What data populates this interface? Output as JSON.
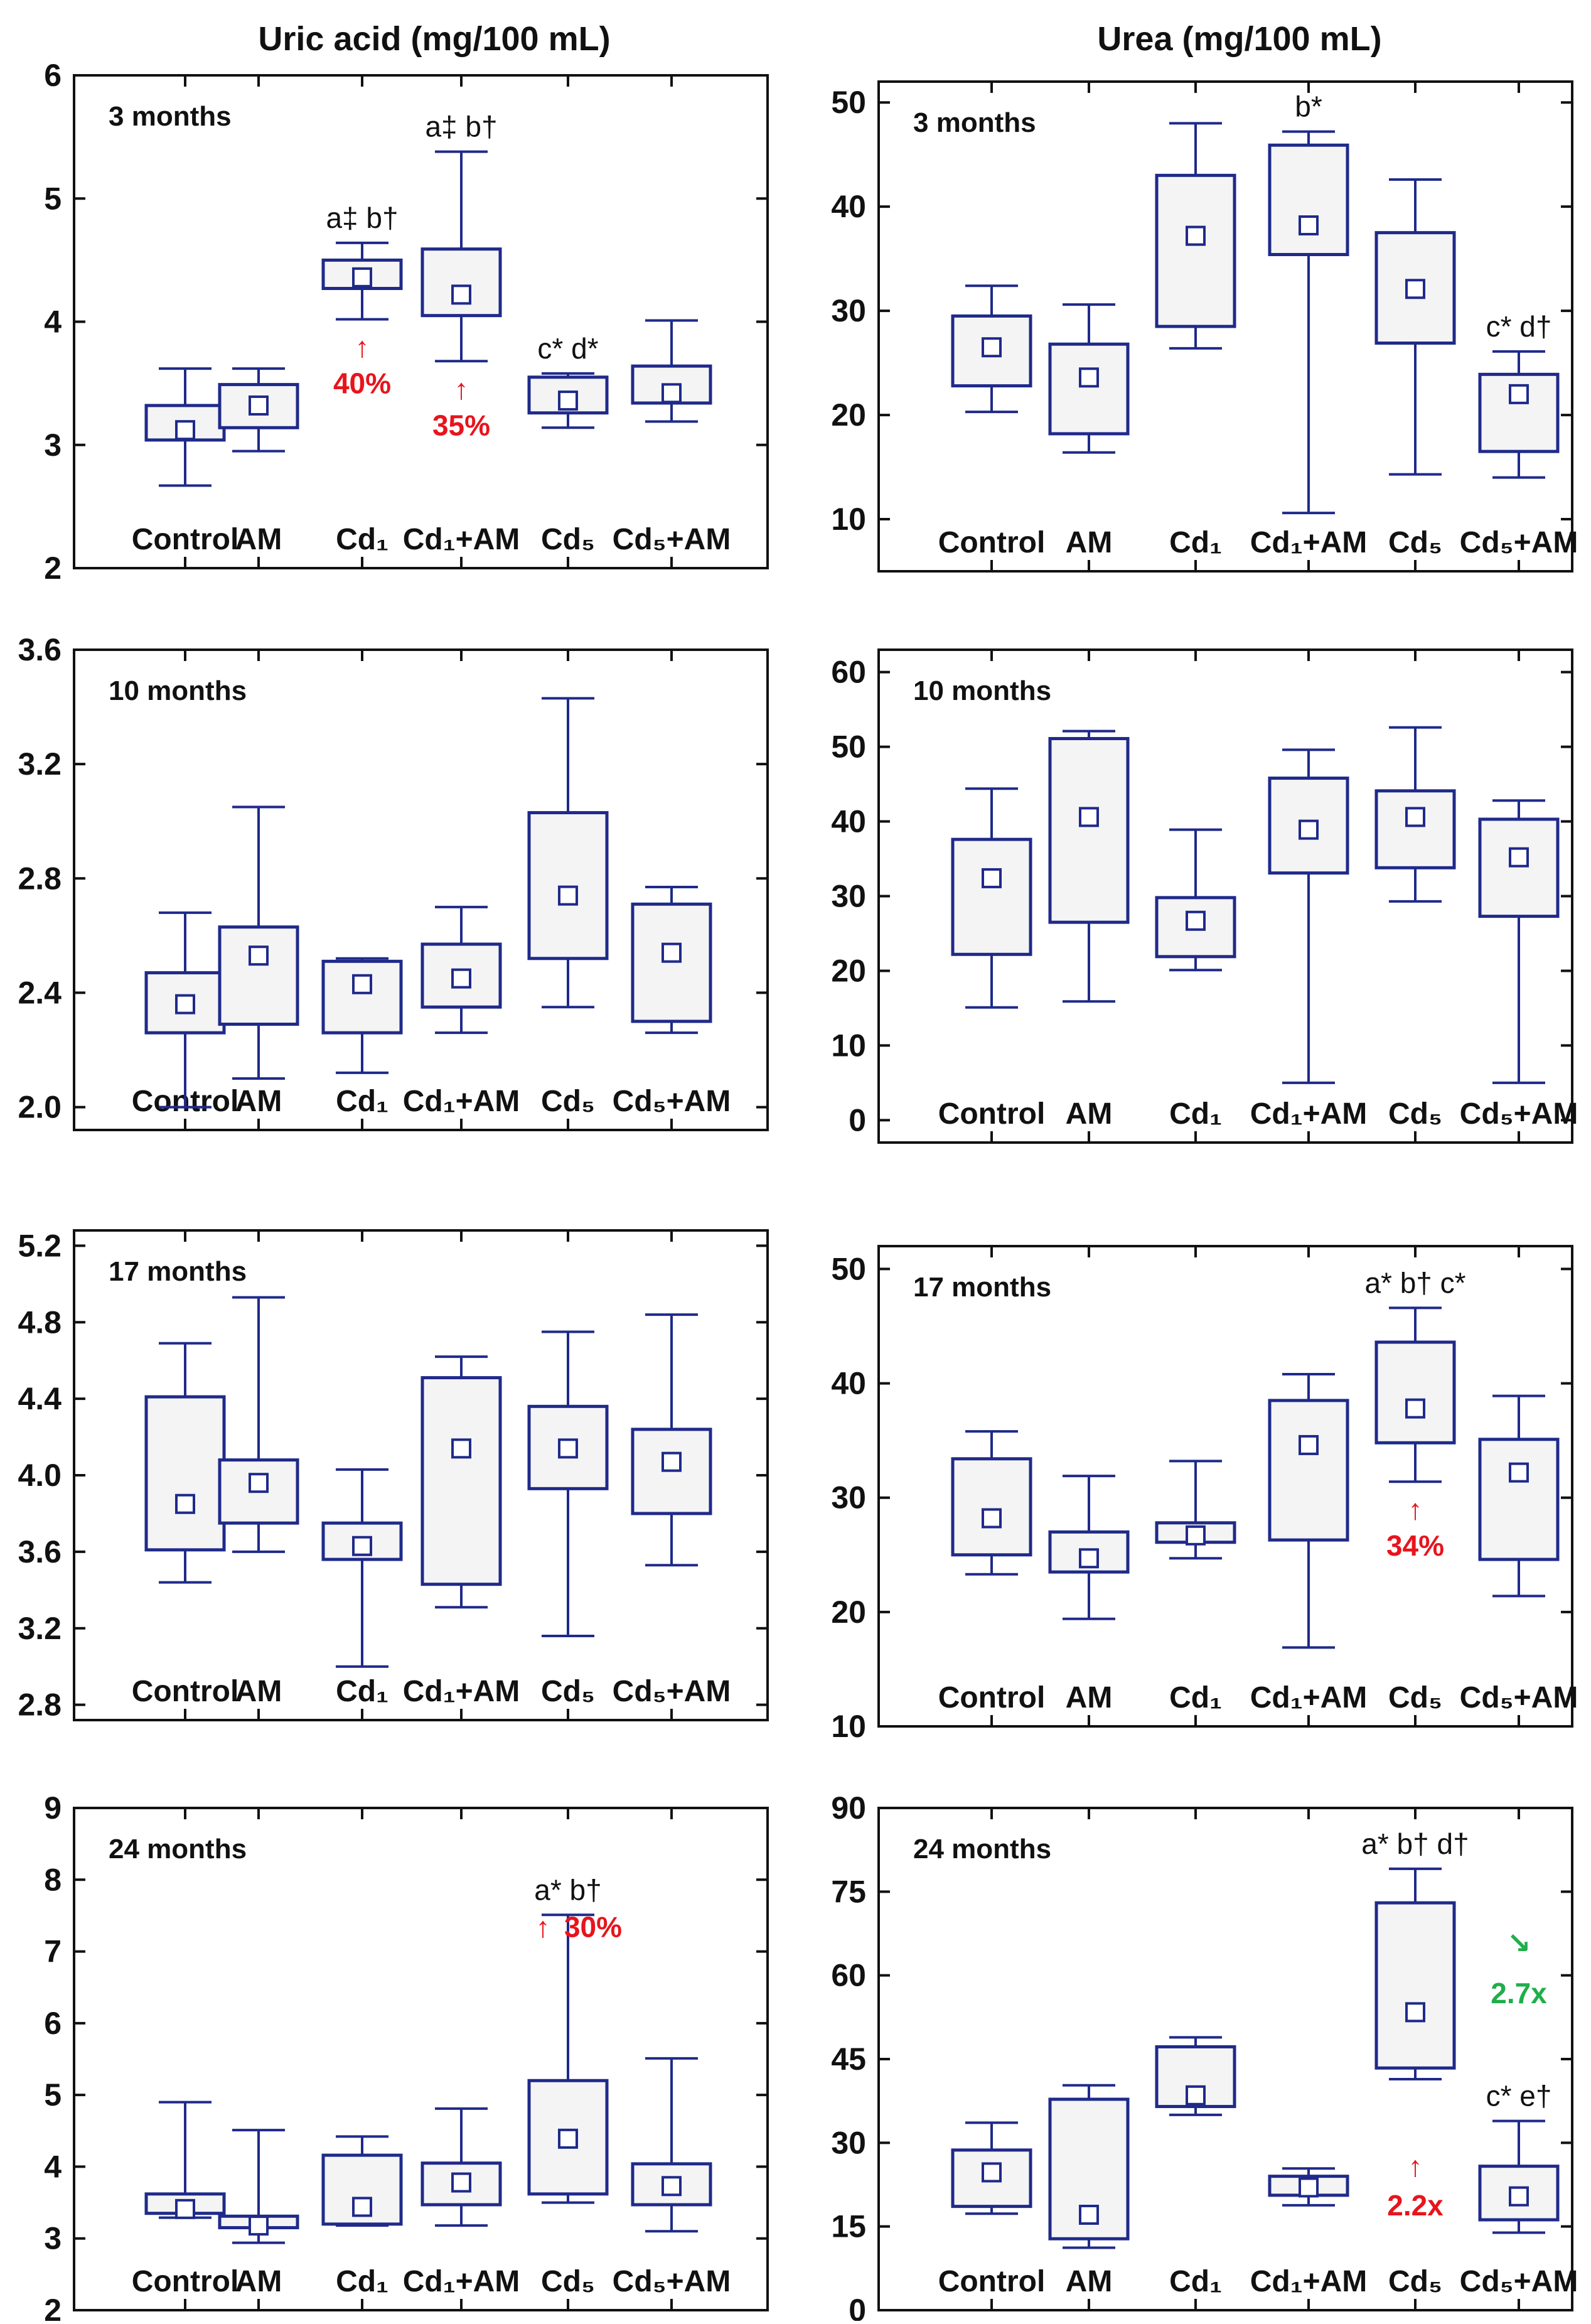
{
  "column_titles": {
    "left": "Uric acid (mg/100 mL)",
    "right": "Urea (mg/100 mL)"
  },
  "colors": {
    "box": "#1f2a8a",
    "box_fill": "#f4f4f4",
    "increase": "#e8141c",
    "decrease": "#1fae4b",
    "text": "#111111"
  },
  "chart_data": [
    {
      "type": "box",
      "panel": "uric-3m",
      "title": "Uric acid (mg/100 mL)",
      "period": "3 months",
      "categories": [
        "Control",
        "AM",
        "Cd₁",
        "Cd₁+AM",
        "Cd₅",
        "Cd₅+AM"
      ],
      "ylim": [
        2,
        6
      ],
      "yticks": [
        2,
        3,
        4,
        5,
        6
      ],
      "boxes": [
        {
          "whisker_low": 2.67,
          "q1": 3.04,
          "mean": 3.12,
          "q3": 3.32,
          "whisker_high": 3.62
        },
        {
          "whisker_low": 2.95,
          "q1": 3.14,
          "mean": 3.32,
          "q3": 3.49,
          "whisker_high": 3.62
        },
        {
          "whisker_low": 4.02,
          "q1": 4.27,
          "mean": 4.36,
          "q3": 4.5,
          "whisker_high": 4.64
        },
        {
          "whisker_low": 3.68,
          "q1": 4.05,
          "mean": 4.22,
          "q3": 4.59,
          "whisker_high": 5.38
        },
        {
          "whisker_low": 3.14,
          "q1": 3.26,
          "mean": 3.36,
          "q3": 3.55,
          "whisker_high": 3.58
        },
        {
          "whisker_low": 3.19,
          "q1": 3.34,
          "mean": 3.42,
          "q3": 3.64,
          "whisker_high": 4.01
        }
      ],
      "annotations": [
        {
          "group": 2,
          "text": "a‡ b†"
        },
        {
          "group": 3,
          "text": "a‡ b†"
        },
        {
          "group": 4,
          "text": "c* d*"
        }
      ],
      "changes": [
        {
          "group": 2,
          "arrow": "↑",
          "text": "40%"
        },
        {
          "group": 3,
          "arrow": "↑",
          "text": "35%"
        }
      ]
    },
    {
      "type": "box",
      "panel": "urea-3m",
      "title": "Urea (mg/100 mL)",
      "period": "3 months",
      "categories": [
        "Control",
        "AM",
        "Cd₁",
        "Cd₁+AM",
        "Cd₅",
        "Cd₅+AM"
      ],
      "ylim": [
        5,
        52
      ],
      "yticks": [
        10,
        20,
        30,
        40,
        50
      ],
      "boxes": [
        {
          "whisker_low": 20.3,
          "q1": 22.8,
          "mean": 26.5,
          "q3": 29.5,
          "whisker_high": 32.4
        },
        {
          "whisker_low": 16.4,
          "q1": 18.2,
          "mean": 23.6,
          "q3": 26.8,
          "whisker_high": 30.6
        },
        {
          "whisker_low": 26.4,
          "q1": 28.5,
          "mean": 37.2,
          "q3": 43.0,
          "whisker_high": 48.0
        },
        {
          "whisker_low": 10.6,
          "q1": 35.4,
          "mean": 38.2,
          "q3": 45.9,
          "whisker_high": 47.2
        },
        {
          "whisker_low": 14.3,
          "q1": 26.9,
          "mean": 32.1,
          "q3": 37.5,
          "whisker_high": 42.6
        },
        {
          "whisker_low": 14.0,
          "q1": 16.5,
          "mean": 22.0,
          "q3": 23.9,
          "whisker_high": 26.1
        }
      ],
      "annotations": [
        {
          "group": 3,
          "text": "b*"
        },
        {
          "group": 5,
          "text": "c* d†"
        }
      ],
      "changes": []
    },
    {
      "type": "box",
      "panel": "uric-10m",
      "title": "Uric acid (mg/100 mL)",
      "period": "10 months",
      "categories": [
        "Control",
        "AM",
        "Cd₁",
        "Cd₁+AM",
        "Cd₅",
        "Cd₅+AM"
      ],
      "ylim": [
        1.92,
        3.6
      ],
      "yticks": [
        2.0,
        2.4,
        2.8,
        3.2,
        3.6
      ],
      "boxes": [
        {
          "whisker_low": 2.0,
          "q1": 2.26,
          "mean": 2.36,
          "q3": 2.47,
          "whisker_high": 2.68
        },
        {
          "whisker_low": 2.1,
          "q1": 2.29,
          "mean": 2.53,
          "q3": 2.63,
          "whisker_high": 3.05
        },
        {
          "whisker_low": 2.12,
          "q1": 2.26,
          "mean": 2.43,
          "q3": 2.51,
          "whisker_high": 2.52
        },
        {
          "whisker_low": 2.26,
          "q1": 2.35,
          "mean": 2.45,
          "q3": 2.57,
          "whisker_high": 2.7
        },
        {
          "whisker_low": 2.35,
          "q1": 2.52,
          "mean": 2.74,
          "q3": 3.03,
          "whisker_high": 3.43
        },
        {
          "whisker_low": 2.26,
          "q1": 2.3,
          "mean": 2.54,
          "q3": 2.71,
          "whisker_high": 2.77
        }
      ],
      "annotations": [],
      "changes": []
    },
    {
      "type": "box",
      "panel": "urea-10m",
      "title": "Urea (mg/100 mL)",
      "period": "10 months",
      "categories": [
        "Control",
        "AM",
        "Cd₁",
        "Cd₁+AM",
        "Cd₅",
        "Cd₅+AM"
      ],
      "ylim": [
        -3,
        63
      ],
      "yticks": [
        0,
        10,
        20,
        30,
        40,
        50,
        60
      ],
      "boxes": [
        {
          "whisker_low": 15.1,
          "q1": 22.2,
          "mean": 32.4,
          "q3": 37.6,
          "whisker_high": 44.4
        },
        {
          "whisker_low": 15.9,
          "q1": 26.5,
          "mean": 40.6,
          "q3": 51.1,
          "whisker_high": 52.1
        },
        {
          "whisker_low": 20.1,
          "q1": 21.9,
          "mean": 26.7,
          "q3": 29.8,
          "whisker_high": 38.9
        },
        {
          "whisker_low": 5.0,
          "q1": 33.1,
          "mean": 38.9,
          "q3": 45.8,
          "whisker_high": 49.6
        },
        {
          "whisker_low": 29.3,
          "q1": 33.8,
          "mean": 40.6,
          "q3": 44.1,
          "whisker_high": 52.6
        },
        {
          "whisker_low": 5.0,
          "q1": 27.3,
          "mean": 35.2,
          "q3": 40.3,
          "whisker_high": 42.8
        }
      ],
      "annotations": [],
      "changes": []
    },
    {
      "type": "box",
      "panel": "uric-17m",
      "title": "Uric acid (mg/100 mL)",
      "period": "17 months",
      "categories": [
        "Control",
        "AM",
        "Cd₁",
        "Cd₁+AM",
        "Cd₅",
        "Cd₅+AM"
      ],
      "ylim": [
        2.72,
        5.28
      ],
      "yticks": [
        2.8,
        3.2,
        3.6,
        4.0,
        4.4,
        4.8,
        5.2
      ],
      "boxes": [
        {
          "whisker_low": 3.44,
          "q1": 3.61,
          "mean": 3.85,
          "q3": 4.41,
          "whisker_high": 4.69
        },
        {
          "whisker_low": 3.6,
          "q1": 3.75,
          "mean": 3.96,
          "q3": 4.08,
          "whisker_high": 4.93
        },
        {
          "whisker_low": 3.0,
          "q1": 3.56,
          "mean": 3.63,
          "q3": 3.75,
          "whisker_high": 4.03
        },
        {
          "whisker_low": 3.31,
          "q1": 3.43,
          "mean": 4.14,
          "q3": 4.51,
          "whisker_high": 4.62
        },
        {
          "whisker_low": 3.16,
          "q1": 3.93,
          "mean": 4.14,
          "q3": 4.36,
          "whisker_high": 4.75
        },
        {
          "whisker_low": 3.53,
          "q1": 3.8,
          "mean": 4.07,
          "q3": 4.24,
          "whisker_high": 4.84
        }
      ],
      "annotations": [],
      "changes": []
    },
    {
      "type": "box",
      "panel": "urea-17m",
      "title": "Urea (mg/100 mL)",
      "period": "17 months",
      "categories": [
        "Control",
        "AM",
        "Cd₁",
        "Cd₁+AM",
        "Cd₅",
        "Cd₅+AM"
      ],
      "ylim": [
        10,
        52
      ],
      "yticks": [
        10,
        20,
        30,
        40,
        50
      ],
      "boxes": [
        {
          "whisker_low": 23.3,
          "q1": 25.0,
          "mean": 28.2,
          "q3": 33.4,
          "whisker_high": 35.8
        },
        {
          "whisker_low": 19.4,
          "q1": 23.5,
          "mean": 24.7,
          "q3": 27.0,
          "whisker_high": 31.9
        },
        {
          "whisker_low": 24.7,
          "q1": 26.1,
          "mean": 26.7,
          "q3": 27.8,
          "whisker_high": 33.2
        },
        {
          "whisker_low": 16.9,
          "q1": 26.3,
          "mean": 34.6,
          "q3": 38.5,
          "whisker_high": 40.8
        },
        {
          "whisker_low": 31.4,
          "q1": 34.8,
          "mean": 37.8,
          "q3": 43.6,
          "whisker_high": 46.6
        },
        {
          "whisker_low": 21.4,
          "q1": 24.6,
          "mean": 32.2,
          "q3": 35.1,
          "whisker_high": 38.9
        }
      ],
      "annotations": [
        {
          "group": 4,
          "text": "a* b† c*"
        }
      ],
      "changes": [
        {
          "group": 4,
          "arrow": "↑",
          "text": "34%"
        }
      ]
    },
    {
      "type": "box",
      "panel": "uric-24m",
      "title": "Uric acid (mg/100 mL)",
      "period": "24 months",
      "categories": [
        "Control",
        "AM",
        "Cd₁",
        "Cd₁+AM",
        "Cd₅",
        "Cd₅+AM"
      ],
      "ylim": [
        2,
        9
      ],
      "yticks": [
        2,
        3,
        4,
        5,
        6,
        7,
        8,
        9
      ],
      "boxes": [
        {
          "whisker_low": 3.29,
          "q1": 3.35,
          "mean": 3.41,
          "q3": 3.62,
          "whisker_high": 4.9
        },
        {
          "whisker_low": 2.94,
          "q1": 3.15,
          "mean": 3.18,
          "q3": 3.31,
          "whisker_high": 4.51
        },
        {
          "whisker_low": 3.18,
          "q1": 3.2,
          "mean": 3.44,
          "q3": 4.16,
          "whisker_high": 4.42
        },
        {
          "whisker_low": 3.18,
          "q1": 3.47,
          "mean": 3.78,
          "q3": 4.05,
          "whisker_high": 4.81
        },
        {
          "whisker_low": 3.5,
          "q1": 3.62,
          "mean": 4.39,
          "q3": 5.2,
          "whisker_high": 7.51
        },
        {
          "whisker_low": 3.1,
          "q1": 3.47,
          "mean": 3.73,
          "q3": 4.04,
          "whisker_high": 5.51
        }
      ],
      "annotations": [
        {
          "group": 4,
          "text": "a* b†"
        }
      ],
      "changes": [
        {
          "group": 4,
          "arrow": "↑",
          "text": "30%"
        }
      ]
    },
    {
      "type": "box",
      "panel": "urea-24m",
      "title": "Urea (mg/100 mL)",
      "period": "24 months",
      "categories": [
        "Control",
        "AM",
        "Cd₁",
        "Cd₁+AM",
        "Cd₅",
        "Cd₅+AM"
      ],
      "ylim": [
        0,
        90
      ],
      "yticks": [
        0,
        15,
        30,
        45,
        60,
        75,
        90
      ],
      "boxes": [
        {
          "whisker_low": 17.3,
          "q1": 18.6,
          "mean": 24.7,
          "q3": 28.7,
          "whisker_high": 33.6
        },
        {
          "whisker_low": 11.2,
          "q1": 12.8,
          "mean": 17.1,
          "q3": 37.8,
          "whisker_high": 40.3
        },
        {
          "whisker_low": 35.0,
          "q1": 36.5,
          "mean": 38.5,
          "q3": 47.2,
          "whisker_high": 48.9
        },
        {
          "whisker_low": 18.8,
          "q1": 20.6,
          "mean": 22.0,
          "q3": 24.0,
          "whisker_high": 25.4
        },
        {
          "whisker_low": 41.4,
          "q1": 43.4,
          "mean": 53.4,
          "q3": 73.0,
          "whisker_high": 79.1
        },
        {
          "whisker_low": 13.9,
          "q1": 16.2,
          "mean": 20.4,
          "q3": 25.8,
          "whisker_high": 33.9
        }
      ],
      "annotations": [
        {
          "group": 4,
          "text": "a* b† d†"
        },
        {
          "group": 5,
          "text": "c* e†"
        }
      ],
      "changes": [
        {
          "group": 4,
          "arrow": "↑",
          "text": "2.2x"
        },
        {
          "group": 5,
          "arrow": "↘",
          "text": "2.7x",
          "tone": "decrease"
        }
      ]
    }
  ]
}
